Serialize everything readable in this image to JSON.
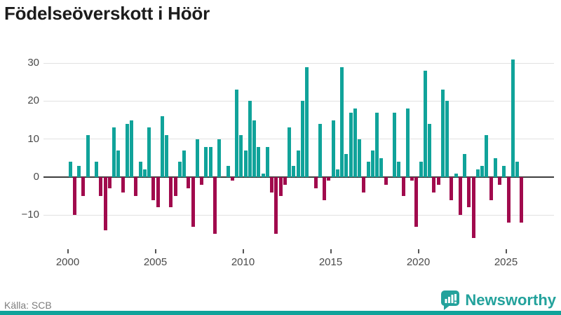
{
  "header": {
    "title": "Födelseöverskott i Höör"
  },
  "footer": {
    "source_label": "Källa: SCB",
    "brand": "Newsworthy"
  },
  "colors": {
    "positive": "#10a39a",
    "negative": "#a10a4d",
    "zero_line": "#3d3d3d",
    "grid": "#e1e1e1",
    "brand_teal": "#23a29c",
    "bottom_strip": "#10a39a"
  },
  "chart_data": {
    "type": "bar",
    "title": "Födelseöverskott i Höör",
    "x_unit": "quarter",
    "x_start_year": 2000,
    "quarters_per_year": 4,
    "ylim": [
      -17,
      32
    ],
    "grid": true,
    "y_tick_values": [
      30,
      20,
      10,
      0,
      -10
    ],
    "y_tick_labels": [
      "30",
      "20",
      "10",
      "0",
      "−10"
    ],
    "x_tick_values": [
      2000,
      2005,
      2010,
      2015,
      2020,
      2025
    ],
    "x_tick_labels": [
      "2000",
      "2005",
      "2010",
      "2015",
      "2020",
      "2025"
    ],
    "series": [
      {
        "values": [
          4,
          -10,
          3,
          -5,
          11,
          0,
          4,
          -5,
          -14,
          -3,
          13,
          7,
          -4,
          14,
          15,
          -5,
          4,
          2,
          13,
          -6,
          -8,
          16,
          11,
          -8,
          -5,
          4,
          7,
          -3,
          -13,
          10,
          -2,
          8,
          8,
          -15,
          10,
          0,
          3,
          -1,
          23,
          11,
          7,
          20,
          15,
          8,
          1,
          8,
          -4,
          -15,
          -5,
          -2,
          13,
          3,
          7,
          20,
          29,
          0,
          -3,
          14,
          -6,
          -1,
          15,
          2,
          29,
          6,
          17,
          18,
          10,
          -4,
          4,
          7,
          17,
          5,
          -2,
          0,
          17,
          4,
          -5,
          18,
          -1,
          -13,
          4,
          28,
          14,
          -4,
          -2,
          23,
          20,
          -6,
          1,
          -10,
          6,
          -8,
          -16,
          2,
          3,
          11,
          -6,
          5,
          -2,
          3,
          -12,
          31,
          4,
          -12
        ]
      }
    ]
  }
}
